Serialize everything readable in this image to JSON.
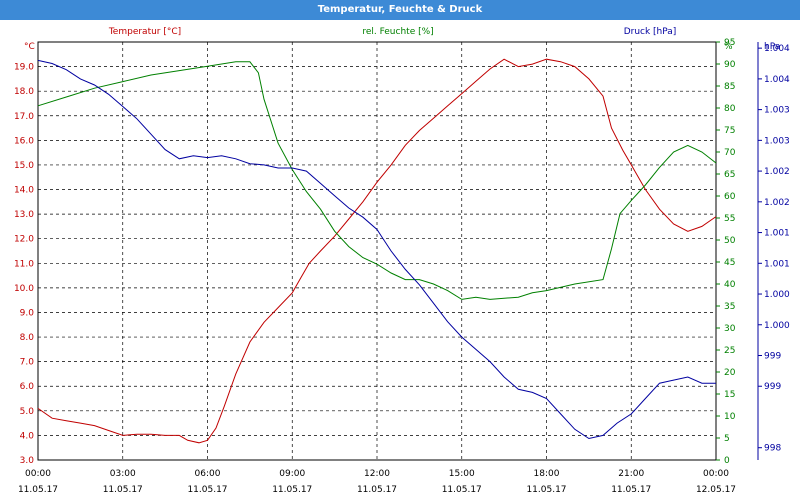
{
  "window": {
    "title": "Temperatur, Feuchte & Druck"
  },
  "chart_data": {
    "type": "line",
    "grid": true,
    "axes": {
      "temperature": {
        "label": "Temperatur [°C]",
        "unit": "°C",
        "min": 3.0,
        "max": 20.0,
        "ticks": [
          "3.0",
          "4.0",
          "5.0",
          "6.0",
          "7.0",
          "8.0",
          "9.0",
          "10.0",
          "11.0",
          "12.0",
          "13.0",
          "14.0",
          "15.0",
          "16.0",
          "17.0",
          "18.0",
          "19.0"
        ],
        "color": "#c00000"
      },
      "humidity": {
        "label": "rel. Feuchte [%]",
        "unit": "%",
        "min": 0,
        "max": 95,
        "ticks": [
          "0",
          "5",
          "10",
          "15",
          "20",
          "25",
          "30",
          "35",
          "40",
          "45",
          "50",
          "55",
          "60",
          "65",
          "70",
          "75",
          "80",
          "85",
          "90",
          "95"
        ],
        "color": "#008000"
      },
      "pressure": {
        "label": "Druck [hPa]",
        "unit": "hPa",
        "min": 997.8,
        "max": 1004.6,
        "ticks": [
          {
            "label": "998",
            "value": 998.0
          },
          {
            "label": "999",
            "value": 999.0
          },
          {
            "label": "999",
            "value": 999.5
          },
          {
            "label": "1.000",
            "value": 1000.0
          },
          {
            "label": "1.000",
            "value": 1000.5
          },
          {
            "label": "1.001",
            "value": 1001.0
          },
          {
            "label": "1.001",
            "value": 1001.5
          },
          {
            "label": "1.002",
            "value": 1002.0
          },
          {
            "label": "1.002",
            "value": 1002.5
          },
          {
            "label": "1.003",
            "value": 1003.0
          },
          {
            "label": "1.003",
            "value": 1003.5
          },
          {
            "label": "1.004",
            "value": 1004.0
          },
          {
            "label": "1.004",
            "value": 1004.5
          }
        ],
        "color": "#0000a0"
      },
      "x": {
        "min": 0,
        "max": 24,
        "ticks": [
          {
            "time": "00:00",
            "date": "11.05.17"
          },
          {
            "time": "03:00",
            "date": "11.05.17"
          },
          {
            "time": "06:00",
            "date": "11.05.17"
          },
          {
            "time": "09:00",
            "date": "11.05.17"
          },
          {
            "time": "12:00",
            "date": "11.05.17"
          },
          {
            "time": "15:00",
            "date": "11.05.17"
          },
          {
            "time": "18:00",
            "date": "11.05.17"
          },
          {
            "time": "21:00",
            "date": "11.05.17"
          },
          {
            "time": "00:00",
            "date": "12.05.17"
          }
        ]
      }
    },
    "series": [
      {
        "name": "Temperatur [°C]",
        "axis": "temperature",
        "color": "#c00000",
        "points": [
          [
            0,
            5.1
          ],
          [
            0.5,
            4.7
          ],
          [
            1,
            4.6
          ],
          [
            1.5,
            4.5
          ],
          [
            2,
            4.4
          ],
          [
            2.5,
            4.2
          ],
          [
            3,
            4.0
          ],
          [
            3.5,
            4.05
          ],
          [
            4,
            4.05
          ],
          [
            4.5,
            4.0
          ],
          [
            5,
            4.0
          ],
          [
            5.3,
            3.8
          ],
          [
            5.7,
            3.7
          ],
          [
            6,
            3.8
          ],
          [
            6.3,
            4.3
          ],
          [
            6.6,
            5.2
          ],
          [
            7,
            6.5
          ],
          [
            7.5,
            7.8
          ],
          [
            8,
            8.6
          ],
          [
            8.5,
            9.2
          ],
          [
            9,
            9.8
          ],
          [
            9.3,
            10.4
          ],
          [
            9.6,
            11.0
          ],
          [
            10,
            11.5
          ],
          [
            10.5,
            12.1
          ],
          [
            11,
            12.8
          ],
          [
            11.5,
            13.5
          ],
          [
            12,
            14.3
          ],
          [
            12.5,
            15.0
          ],
          [
            13,
            15.8
          ],
          [
            13.5,
            16.4
          ],
          [
            14,
            16.9
          ],
          [
            14.5,
            17.4
          ],
          [
            15,
            17.9
          ],
          [
            15.5,
            18.4
          ],
          [
            16,
            18.9
          ],
          [
            16.5,
            19.3
          ],
          [
            17,
            19.0
          ],
          [
            17.5,
            19.1
          ],
          [
            18,
            19.3
          ],
          [
            18.5,
            19.2
          ],
          [
            19,
            19.0
          ],
          [
            19.5,
            18.5
          ],
          [
            20,
            17.8
          ],
          [
            20.3,
            16.5
          ],
          [
            20.7,
            15.6
          ],
          [
            21,
            15.0
          ],
          [
            21.5,
            14.0
          ],
          [
            22,
            13.2
          ],
          [
            22.5,
            12.6
          ],
          [
            23,
            12.3
          ],
          [
            23.5,
            12.5
          ],
          [
            24,
            12.9
          ]
        ]
      },
      {
        "name": "rel. Feuchte [%]",
        "axis": "humidity",
        "color": "#008000",
        "points": [
          [
            0,
            80.5
          ],
          [
            1,
            82.5
          ],
          [
            2,
            84.5
          ],
          [
            3,
            86.0
          ],
          [
            4,
            87.5
          ],
          [
            5,
            88.5
          ],
          [
            6,
            89.5
          ],
          [
            7,
            90.5
          ],
          [
            7.5,
            90.5
          ],
          [
            7.8,
            88.0
          ],
          [
            8,
            82.0
          ],
          [
            8.5,
            72.0
          ],
          [
            9,
            66.0
          ],
          [
            9.5,
            61.0
          ],
          [
            10,
            57.0
          ],
          [
            10.5,
            52.0
          ],
          [
            11,
            48.5
          ],
          [
            11.5,
            46.0
          ],
          [
            12,
            44.5
          ],
          [
            12.5,
            42.5
          ],
          [
            13,
            41.0
          ],
          [
            13.5,
            41.0
          ],
          [
            14,
            40.0
          ],
          [
            14.5,
            38.5
          ],
          [
            15,
            36.5
          ],
          [
            15.5,
            37.0
          ],
          [
            16,
            36.5
          ],
          [
            17,
            37.0
          ],
          [
            17.5,
            38.0
          ],
          [
            18,
            38.5
          ],
          [
            19,
            40.0
          ],
          [
            20,
            41.0
          ],
          [
            20.3,
            48.0
          ],
          [
            20.6,
            56.0
          ],
          [
            21,
            59.0
          ],
          [
            21.5,
            62.5
          ],
          [
            22,
            66.5
          ],
          [
            22.5,
            70.0
          ],
          [
            23,
            71.5
          ],
          [
            23.5,
            70.0
          ],
          [
            24,
            67.5
          ]
        ]
      },
      {
        "name": "Druck [hPa]",
        "axis": "pressure",
        "color": "#0000a0",
        "points": [
          [
            0,
            1004.3
          ],
          [
            0.5,
            1004.25
          ],
          [
            1,
            1004.15
          ],
          [
            1.5,
            1004.0
          ],
          [
            2,
            1003.9
          ],
          [
            2.5,
            1003.75
          ],
          [
            3,
            1003.55
          ],
          [
            3.5,
            1003.35
          ],
          [
            4,
            1003.1
          ],
          [
            4.5,
            1002.85
          ],
          [
            5,
            1002.7
          ],
          [
            5.5,
            1002.75
          ],
          [
            6,
            1002.72
          ],
          [
            6.5,
            1002.75
          ],
          [
            7,
            1002.7
          ],
          [
            7.5,
            1002.62
          ],
          [
            8,
            1002.6
          ],
          [
            8.5,
            1002.55
          ],
          [
            9,
            1002.55
          ],
          [
            9.5,
            1002.5
          ],
          [
            10,
            1002.3
          ],
          [
            10.5,
            1002.1
          ],
          [
            11,
            1001.9
          ],
          [
            11.5,
            1001.75
          ],
          [
            12,
            1001.55
          ],
          [
            12.5,
            1001.2
          ],
          [
            13,
            1000.9
          ],
          [
            13.5,
            1000.65
          ],
          [
            14,
            1000.35
          ],
          [
            14.5,
            1000.05
          ],
          [
            15,
            999.8
          ],
          [
            15.5,
            999.6
          ],
          [
            16,
            999.4
          ],
          [
            16.5,
            999.15
          ],
          [
            17,
            998.95
          ],
          [
            17.5,
            998.9
          ],
          [
            18,
            998.8
          ],
          [
            18.5,
            998.55
          ],
          [
            19,
            998.3
          ],
          [
            19.5,
            998.15
          ],
          [
            20,
            998.2
          ],
          [
            20.5,
            998.4
          ],
          [
            21,
            998.55
          ],
          [
            21.5,
            998.8
          ],
          [
            22,
            999.05
          ],
          [
            22.5,
            999.1
          ],
          [
            23,
            999.15
          ],
          [
            23.5,
            999.05
          ],
          [
            24,
            999.05
          ]
        ]
      }
    ]
  }
}
